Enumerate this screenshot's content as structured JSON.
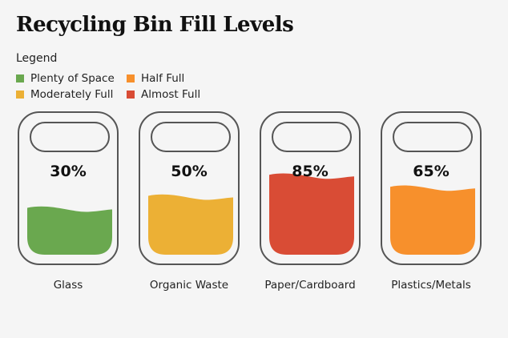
{
  "chart_data": {
    "type": "bar",
    "title": "Recycling Bin Fill Levels",
    "legend_title": "Legend",
    "legend": [
      {
        "label": "Plenty of Space",
        "color": "#6aa84f"
      },
      {
        "label": "Half Full",
        "color": "#f7902c"
      },
      {
        "label": "Moderately Full",
        "color": "#ecb035"
      },
      {
        "label": "Almost Full",
        "color": "#d94c35"
      }
    ],
    "categories": [
      "Glass",
      "Organic Waste",
      "Paper/Cardboard",
      "Plastics/Metals"
    ],
    "values": [
      30,
      50,
      85,
      65
    ],
    "value_labels": [
      "30%",
      "50%",
      "85%",
      "65%"
    ],
    "colors": [
      "#6aa84f",
      "#ecb035",
      "#d94c35",
      "#f7902c"
    ],
    "ylim": [
      0,
      100
    ]
  }
}
